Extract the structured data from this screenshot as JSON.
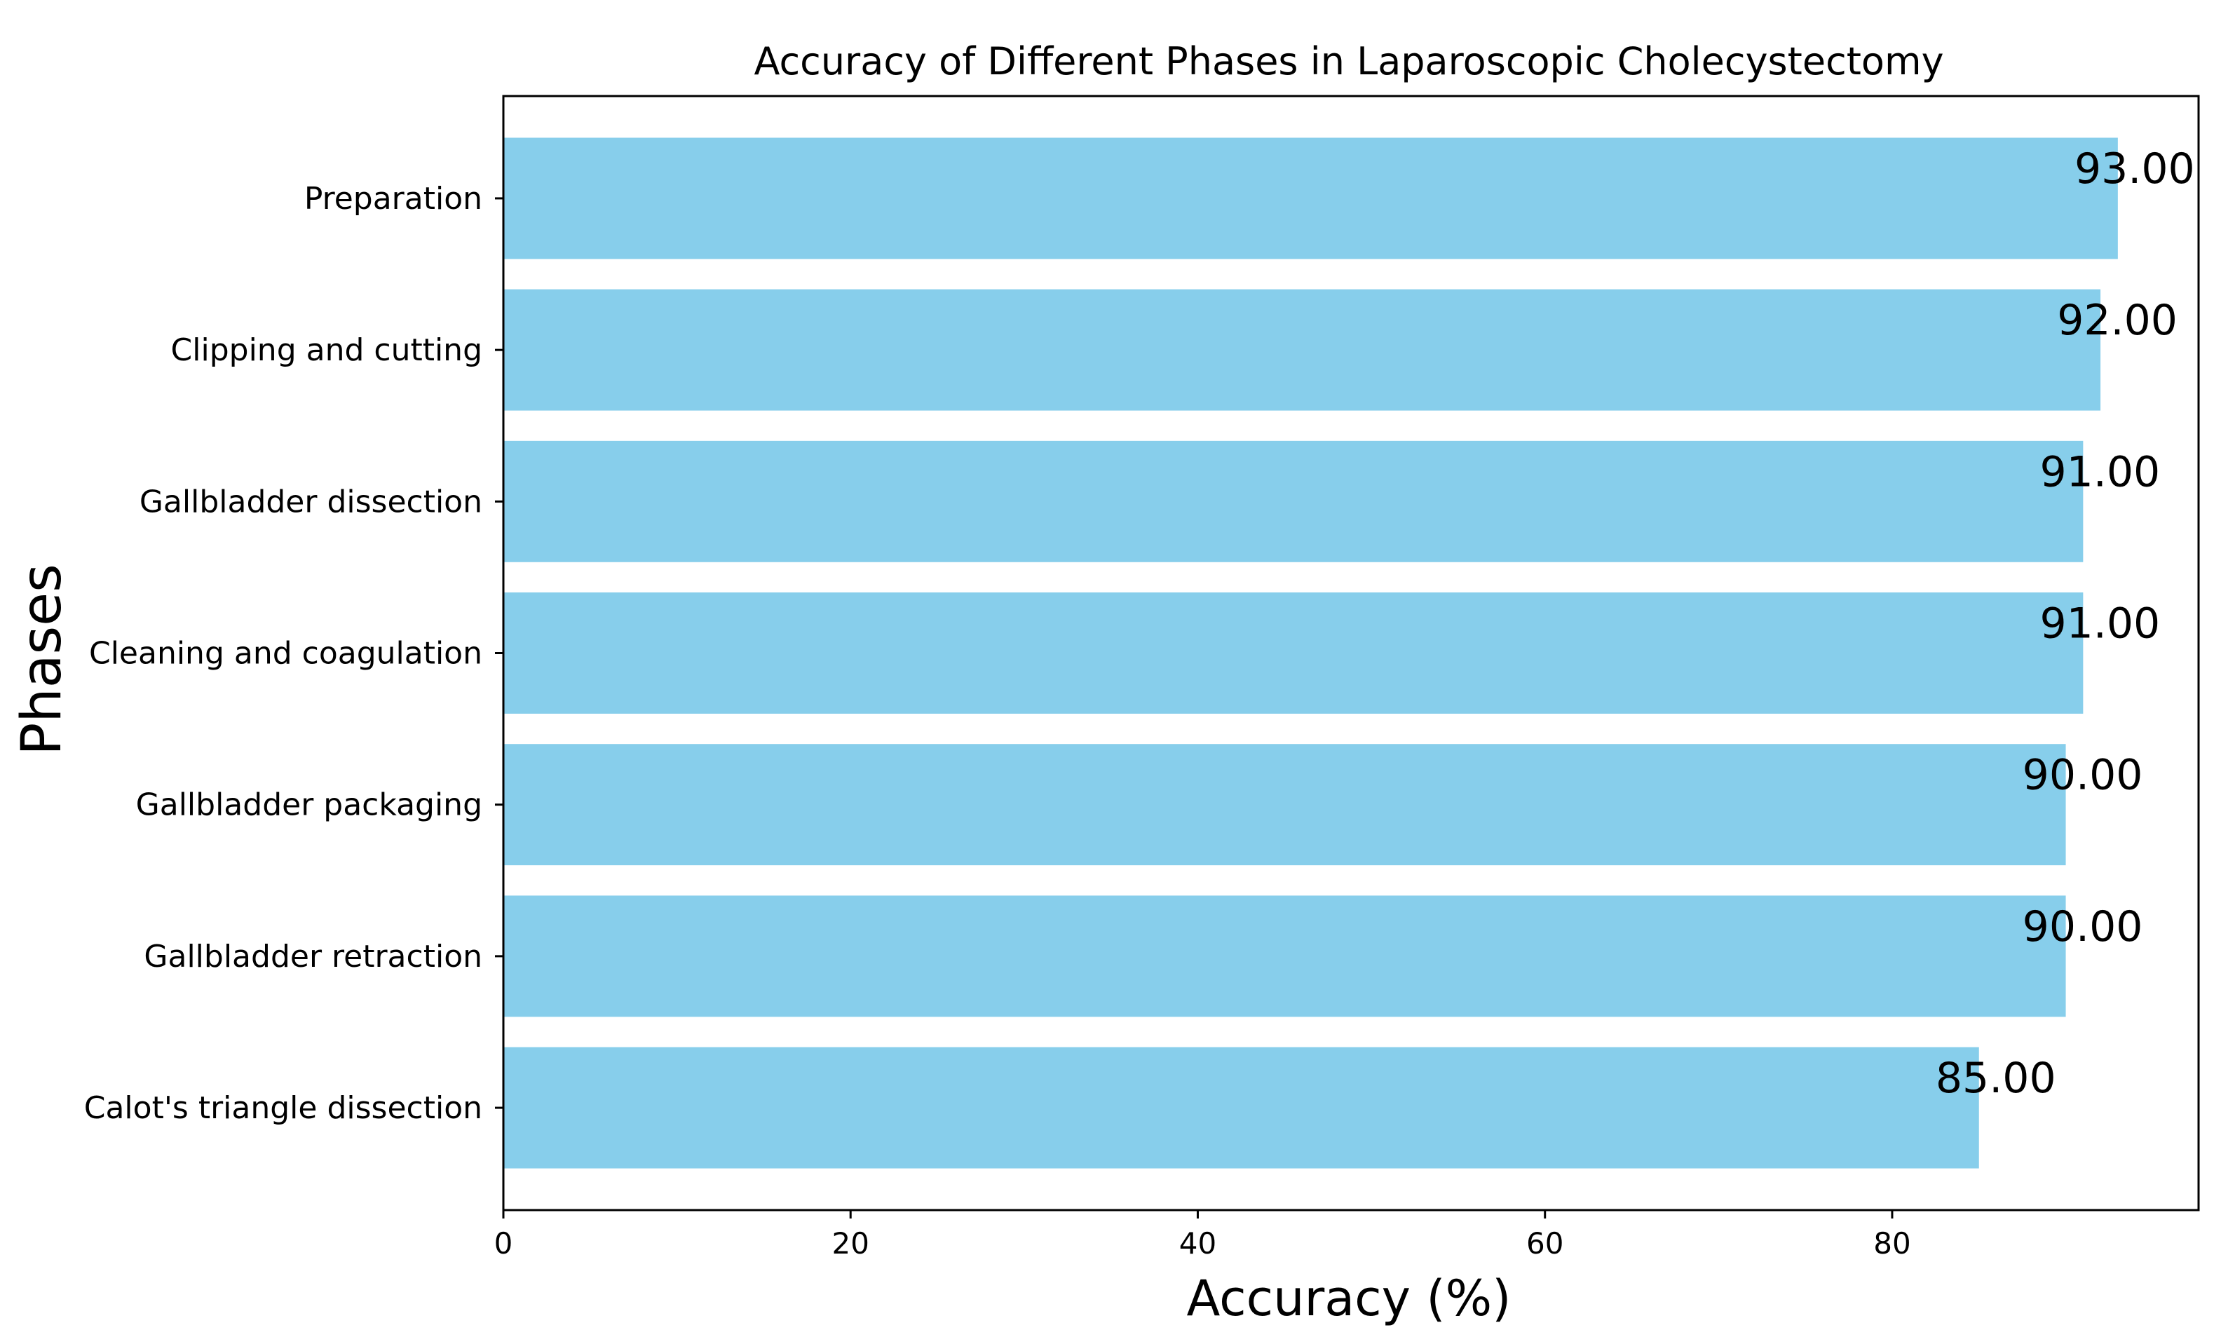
{
  "chart_data": {
    "type": "bar",
    "orientation": "horizontal",
    "title": "Accuracy of Different Phases in Laparoscopic Cholecystectomy",
    "xlabel": "Accuracy (%)",
    "ylabel": "Phases",
    "categories": [
      "Calot's triangle dissection",
      "Gallbladder retraction",
      "Gallbladder packaging",
      "Cleaning and coagulation",
      "Gallbladder dissection",
      "Clipping and cutting",
      "Preparation"
    ],
    "values": [
      85,
      90,
      90,
      91,
      91,
      92,
      93
    ],
    "value_labels": [
      "85.00",
      "90.00",
      "90.00",
      "91.00",
      "91.00",
      "92.00",
      "93.00"
    ],
    "xlim": [
      0,
      97.65
    ],
    "xticks": [
      0,
      20,
      40,
      60,
      80
    ],
    "xtick_labels": [
      "0",
      "20",
      "40",
      "60",
      "80"
    ],
    "grid": false,
    "bar_color": "#87ceeb"
  }
}
